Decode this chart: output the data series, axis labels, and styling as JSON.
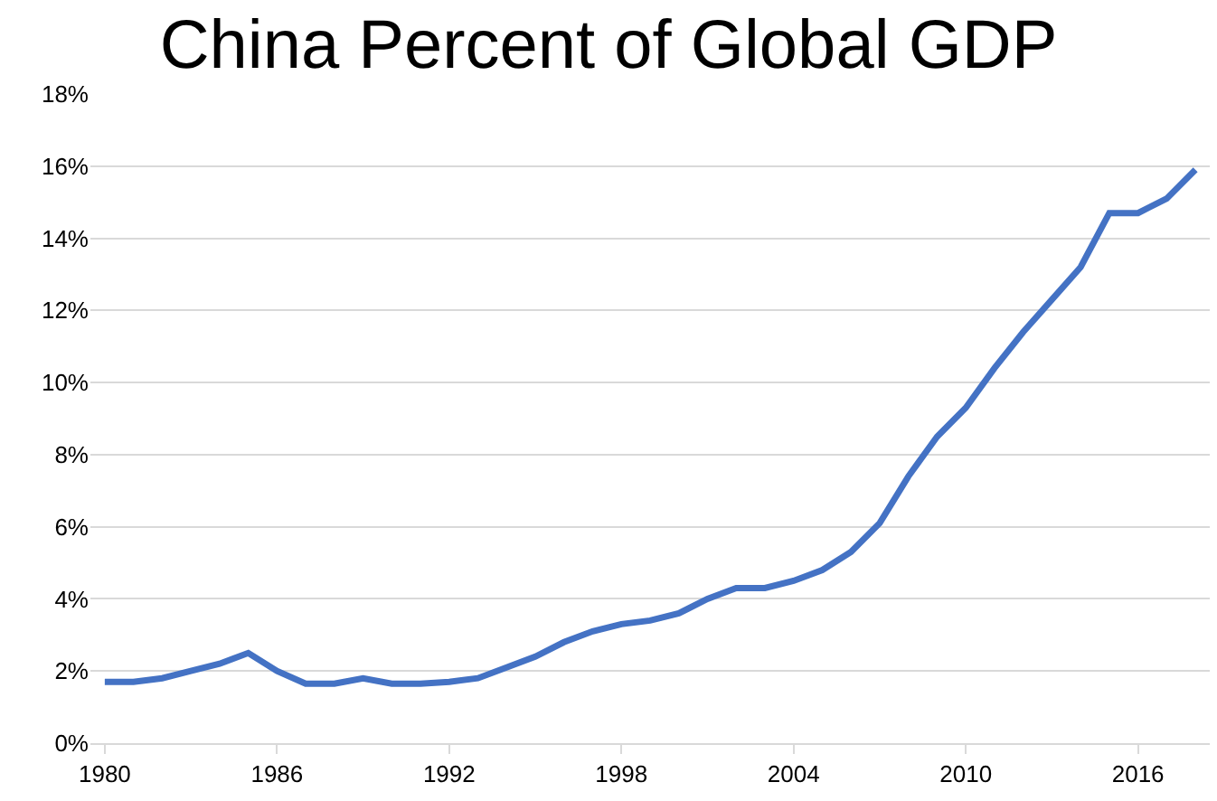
{
  "chart_data": {
    "type": "line",
    "title": "China Percent of Global GDP",
    "x": [
      1980,
      1981,
      1982,
      1983,
      1984,
      1985,
      1986,
      1987,
      1988,
      1989,
      1990,
      1991,
      1992,
      1993,
      1994,
      1995,
      1996,
      1997,
      1998,
      1999,
      2000,
      2001,
      2002,
      2003,
      2004,
      2005,
      2006,
      2007,
      2008,
      2009,
      2010,
      2011,
      2012,
      2013,
      2014,
      2015,
      2016,
      2017,
      2018
    ],
    "series": [
      {
        "color": "#4472c4",
        "values": [
          1.7,
          1.7,
          1.8,
          2.0,
          2.2,
          2.5,
          2.0,
          1.65,
          1.65,
          1.8,
          1.65,
          1.65,
          1.7,
          1.8,
          2.1,
          2.4,
          2.8,
          3.1,
          3.3,
          3.4,
          3.6,
          4.0,
          4.3,
          4.3,
          4.5,
          4.8,
          5.3,
          6.1,
          7.4,
          8.5,
          9.3,
          10.4,
          11.4,
          12.3,
          13.2,
          14.7,
          14.7,
          15.1,
          15.9
        ]
      }
    ],
    "xlim": [
      1979.5,
      2018.5
    ],
    "xticks": [
      1980,
      1986,
      1992,
      1998,
      2004,
      2010,
      2016
    ],
    "ylim": [
      0,
      18
    ],
    "yticks": [
      {
        "value": 0,
        "label": "0%"
      },
      {
        "value": 2,
        "label": "2%"
      },
      {
        "value": 4,
        "label": "4%"
      },
      {
        "value": 6,
        "label": "6%"
      },
      {
        "value": 8,
        "label": "8%"
      },
      {
        "value": 10,
        "label": "10%"
      },
      {
        "value": 12,
        "label": "12%"
      },
      {
        "value": 14,
        "label": "14%"
      },
      {
        "value": 16,
        "label": "16%"
      },
      {
        "value": 18,
        "label": "18%"
      }
    ],
    "grid": "y",
    "marker": "none",
    "line_style": "solid"
  }
}
